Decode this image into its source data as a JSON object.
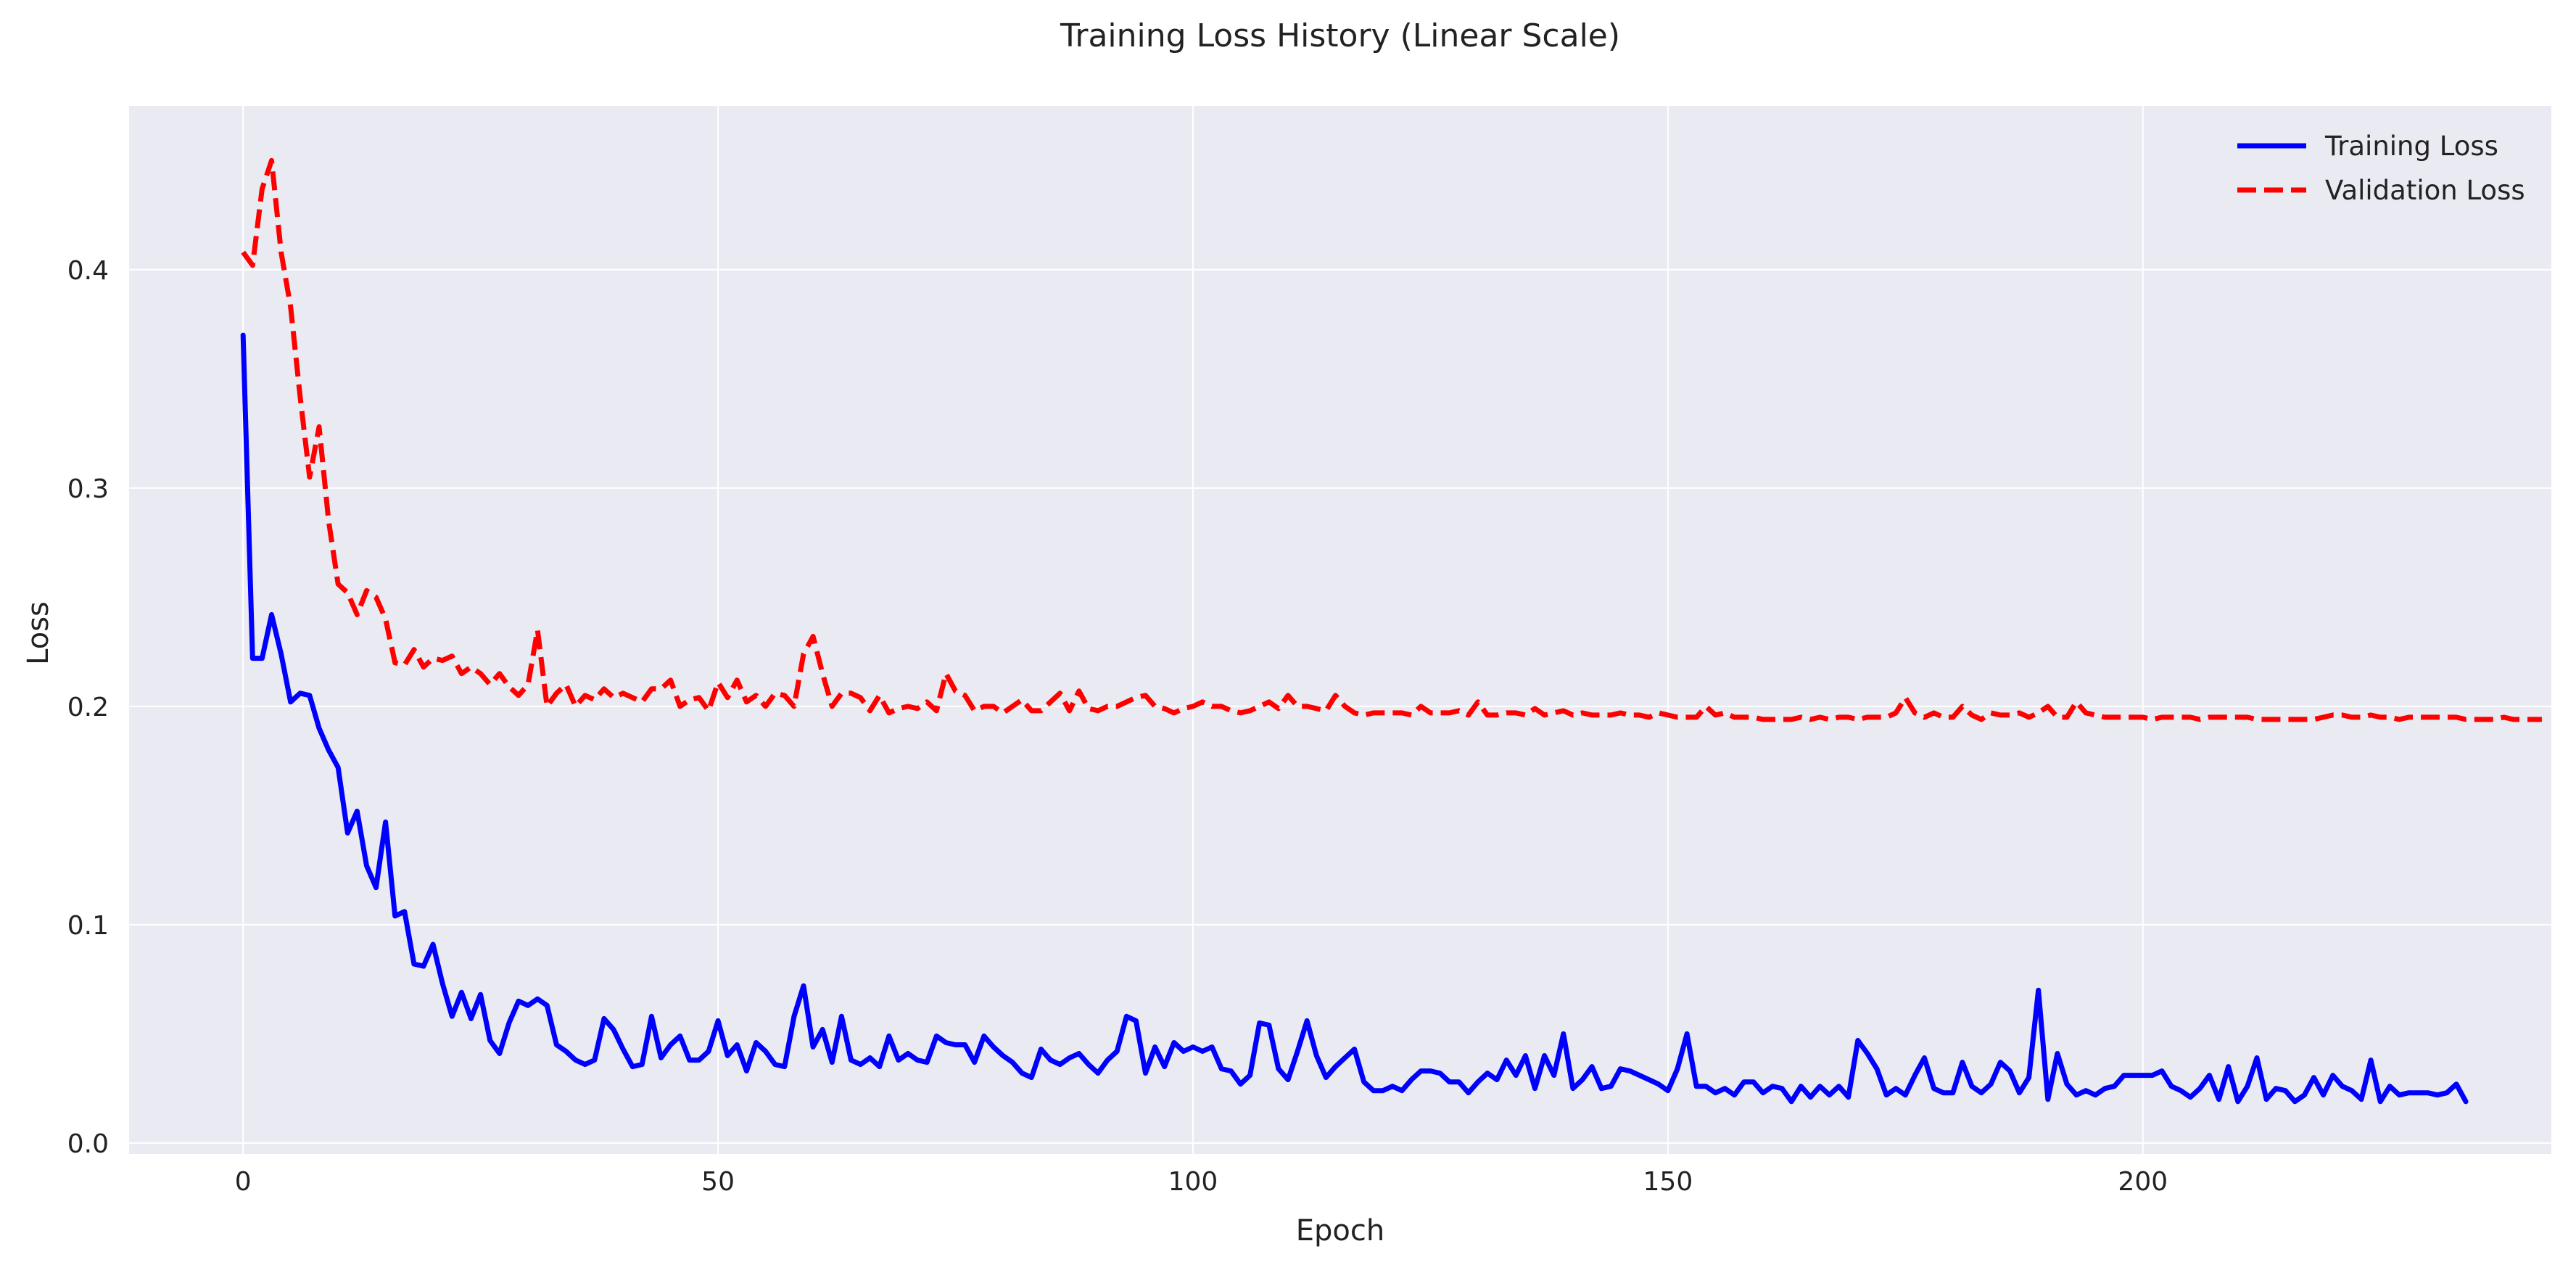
{
  "chart_data": {
    "type": "line",
    "title": "Training Loss History (Linear Scale)",
    "xlabel": "Epoch",
    "ylabel": "Loss",
    "xlim": [
      -12,
      243
    ],
    "ylim": [
      -0.005,
      0.475
    ],
    "xticks": [
      0,
      50,
      100,
      150,
      200
    ],
    "yticks": [
      0.0,
      0.1,
      0.2,
      0.3,
      0.4
    ],
    "xtick_labels": [
      "0",
      "50",
      "100",
      "150",
      "200"
    ],
    "ytick_labels": [
      "0.0",
      "0.1",
      "0.2",
      "0.3",
      "0.4"
    ],
    "grid": true,
    "legend_position": "top-right",
    "series": [
      {
        "name": "Training Loss",
        "color": "#0000ff",
        "style": "solid",
        "values": [
          0.37,
          0.222,
          0.222,
          0.242,
          0.224,
          0.202,
          0.206,
          0.205,
          0.19,
          0.18,
          0.172,
          0.142,
          0.152,
          0.127,
          0.117,
          0.147,
          0.104,
          0.106,
          0.082,
          0.081,
          0.091,
          0.073,
          0.058,
          0.069,
          0.057,
          0.068,
          0.047,
          0.041,
          0.055,
          0.065,
          0.063,
          0.066,
          0.063,
          0.045,
          0.042,
          0.038,
          0.036,
          0.038,
          0.057,
          0.052,
          0.043,
          0.035,
          0.036,
          0.058,
          0.039,
          0.045,
          0.049,
          0.038,
          0.038,
          0.042,
          0.056,
          0.04,
          0.045,
          0.033,
          0.046,
          0.042,
          0.036,
          0.035,
          0.058,
          0.072,
          0.044,
          0.052,
          0.037,
          0.058,
          0.038,
          0.036,
          0.039,
          0.035,
          0.049,
          0.038,
          0.041,
          0.038,
          0.037,
          0.049,
          0.046,
          0.045,
          0.045,
          0.037,
          0.049,
          0.044,
          0.04,
          0.037,
          0.032,
          0.03,
          0.043,
          0.038,
          0.036,
          0.039,
          0.041,
          0.036,
          0.032,
          0.038,
          0.042,
          0.058,
          0.056,
          0.032,
          0.044,
          0.035,
          0.046,
          0.042,
          0.044,
          0.042,
          0.044,
          0.034,
          0.033,
          0.027,
          0.031,
          0.055,
          0.054,
          0.034,
          0.029,
          0.042,
          0.056,
          0.04,
          0.03,
          0.035,
          0.039,
          0.043,
          0.028,
          0.024,
          0.024,
          0.026,
          0.024,
          0.029,
          0.033,
          0.033,
          0.032,
          0.028,
          0.028,
          0.023,
          0.028,
          0.032,
          0.029,
          0.038,
          0.031,
          0.04,
          0.025,
          0.04,
          0.031,
          0.05,
          0.025,
          0.029,
          0.035,
          0.025,
          0.026,
          0.034,
          0.033,
          0.031,
          0.029,
          0.027,
          0.024,
          0.034,
          0.05,
          0.026,
          0.026,
          0.023,
          0.025,
          0.022,
          0.028,
          0.028,
          0.023,
          0.026,
          0.025,
          0.019,
          0.026,
          0.021,
          0.026,
          0.022,
          0.026,
          0.021,
          0.047,
          0.041,
          0.034,
          0.022,
          0.025,
          0.022,
          0.031,
          0.039,
          0.025,
          0.023,
          0.023,
          0.037,
          0.026,
          0.023,
          0.027,
          0.037,
          0.033,
          0.023,
          0.03,
          0.07,
          0.02,
          0.041,
          0.027,
          0.022,
          0.024,
          0.022,
          0.025,
          0.026,
          0.031,
          0.031,
          0.031,
          0.031,
          0.033,
          0.026,
          0.024,
          0.021,
          0.025,
          0.031,
          0.02,
          0.035,
          0.019,
          0.026,
          0.039,
          0.02,
          0.025,
          0.024,
          0.019,
          0.022,
          0.03,
          0.022,
          0.031,
          0.026,
          0.024,
          0.02,
          0.038,
          0.019,
          0.026,
          0.022,
          0.023,
          0.023,
          0.023,
          0.022,
          0.023,
          0.027,
          0.019
        ]
      },
      {
        "name": "Validation Loss",
        "color": "#ff0000",
        "style": "dashed",
        "values": [
          0.408,
          0.402,
          0.437,
          0.45,
          0.408,
          0.383,
          0.342,
          0.305,
          0.328,
          0.285,
          0.256,
          0.252,
          0.242,
          0.253,
          0.25,
          0.24,
          0.22,
          0.219,
          0.226,
          0.218,
          0.222,
          0.221,
          0.223,
          0.215,
          0.218,
          0.215,
          0.21,
          0.215,
          0.209,
          0.205,
          0.21,
          0.235,
          0.2,
          0.206,
          0.21,
          0.2,
          0.205,
          0.203,
          0.208,
          0.204,
          0.206,
          0.204,
          0.202,
          0.208,
          0.208,
          0.212,
          0.2,
          0.203,
          0.204,
          0.198,
          0.211,
          0.204,
          0.212,
          0.202,
          0.205,
          0.2,
          0.206,
          0.205,
          0.2,
          0.224,
          0.232,
          0.215,
          0.2,
          0.206,
          0.206,
          0.204,
          0.198,
          0.205,
          0.197,
          0.199,
          0.2,
          0.199,
          0.202,
          0.198,
          0.215,
          0.207,
          0.205,
          0.198,
          0.2,
          0.2,
          0.197,
          0.2,
          0.203,
          0.198,
          0.198,
          0.202,
          0.206,
          0.198,
          0.207,
          0.199,
          0.198,
          0.2,
          0.2,
          0.202,
          0.204,
          0.205,
          0.2,
          0.199,
          0.197,
          0.199,
          0.2,
          0.202,
          0.2,
          0.2,
          0.198,
          0.197,
          0.198,
          0.2,
          0.202,
          0.199,
          0.205,
          0.2,
          0.2,
          0.199,
          0.198,
          0.205,
          0.2,
          0.197,
          0.196,
          0.197,
          0.197,
          0.197,
          0.197,
          0.196,
          0.2,
          0.197,
          0.197,
          0.197,
          0.198,
          0.196,
          0.202,
          0.196,
          0.196,
          0.197,
          0.197,
          0.196,
          0.199,
          0.196,
          0.197,
          0.198,
          0.196,
          0.197,
          0.196,
          0.196,
          0.196,
          0.197,
          0.196,
          0.196,
          0.195,
          0.197,
          0.196,
          0.195,
          0.195,
          0.195,
          0.2,
          0.196,
          0.197,
          0.195,
          0.195,
          0.195,
          0.194,
          0.194,
          0.194,
          0.194,
          0.195,
          0.194,
          0.195,
          0.194,
          0.195,
          0.195,
          0.194,
          0.195,
          0.195,
          0.195,
          0.197,
          0.204,
          0.197,
          0.195,
          0.197,
          0.195,
          0.195,
          0.2,
          0.196,
          0.194,
          0.197,
          0.196,
          0.196,
          0.197,
          0.195,
          0.197,
          0.2,
          0.195,
          0.195,
          0.202,
          0.197,
          0.196,
          0.195,
          0.195,
          0.195,
          0.195,
          0.195,
          0.194,
          0.195,
          0.195,
          0.195,
          0.195,
          0.194,
          0.195,
          0.195,
          0.195,
          0.195,
          0.195,
          0.194,
          0.194,
          0.194,
          0.194,
          0.194,
          0.194,
          0.194,
          0.195,
          0.196,
          0.196,
          0.195,
          0.195,
          0.196,
          0.195,
          0.195,
          0.194,
          0.195,
          0.195,
          0.195,
          0.195,
          0.195,
          0.195,
          0.194,
          0.194,
          0.194,
          0.194,
          0.195,
          0.194,
          0.194,
          0.194,
          0.194
        ]
      }
    ]
  }
}
